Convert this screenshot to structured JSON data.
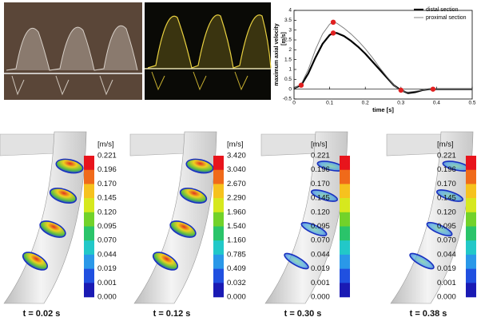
{
  "chart_data": {
    "type": "line",
    "y_label": "maximum axial velocity",
    "y_label_unit": "[m/s]",
    "x_label": "time [s]",
    "x": [
      0,
      0.02,
      0.04,
      0.06,
      0.08,
      0.1,
      0.11,
      0.12,
      0.14,
      0.16,
      0.18,
      0.2,
      0.22,
      0.24,
      0.26,
      0.28,
      0.3,
      0.32,
      0.34,
      0.36,
      0.38,
      0.4,
      0.45,
      0.5
    ],
    "series": [
      {
        "name": "distal section",
        "color": "#000000",
        "width": 2.2,
        "values": [
          0.05,
          0.2,
          0.8,
          1.6,
          2.3,
          2.75,
          2.85,
          2.85,
          2.7,
          2.45,
          2.15,
          1.8,
          1.4,
          1.0,
          0.6,
          0.2,
          -0.05,
          -0.2,
          -0.15,
          -0.05,
          0,
          0,
          0,
          0
        ]
      },
      {
        "name": "proximal section",
        "color": "#777777",
        "width": 0.9,
        "values": [
          0.05,
          0.25,
          1.0,
          2.0,
          2.8,
          3.3,
          3.4,
          3.35,
          3.1,
          2.8,
          2.45,
          2.05,
          1.6,
          1.1,
          0.65,
          0.2,
          -0.1,
          -0.15,
          -0.1,
          -0.05,
          0,
          0,
          0,
          0
        ]
      }
    ],
    "markers": {
      "color": "#e02020",
      "x": [
        0.02,
        0.11,
        0.11,
        0.3,
        0.39
      ],
      "values": [
        0.2,
        2.85,
        3.4,
        -0.05,
        0
      ]
    },
    "xlim": [
      0,
      0.5
    ],
    "xticks": [
      0,
      0.1,
      0.2,
      0.3,
      0.4,
      0.5
    ],
    "ylim": [
      -0.5,
      4
    ],
    "yticks": [
      -0.5,
      0,
      0.5,
      1,
      1.5,
      2,
      2.5,
      3,
      3.5,
      4
    ]
  },
  "panels": [
    {
      "unit": "[m/s]",
      "labels": [
        "0.221",
        "0.196",
        "0.170",
        "0.145",
        "0.120",
        "0.095",
        "0.070",
        "0.044",
        "0.019",
        "0.001",
        "0.000"
      ],
      "caption": "t = 0.02 s"
    },
    {
      "unit": "[m/s]",
      "labels": [
        "3.420",
        "3.040",
        "2.670",
        "2.290",
        "1.960",
        "1.540",
        "1.160",
        "0.785",
        "0.409",
        "0.032",
        "0.000"
      ],
      "caption": "t = 0.12 s"
    },
    {
      "unit": "[m/s]",
      "labels": [
        "0.221",
        "0.196",
        "0.170",
        "0.145",
        "0.120",
        "0.095",
        "0.070",
        "0.044",
        "0.019",
        "0.001",
        "0.000"
      ],
      "caption": "t = 0.30 s"
    },
    {
      "unit": "[m/s]",
      "labels": [
        "0.221",
        "0.196",
        "0.170",
        "0.145",
        "0.120",
        "0.095",
        "0.070",
        "0.044",
        "0.019",
        "0.001",
        "0.000"
      ],
      "caption": "t = 0.38 s"
    }
  ]
}
